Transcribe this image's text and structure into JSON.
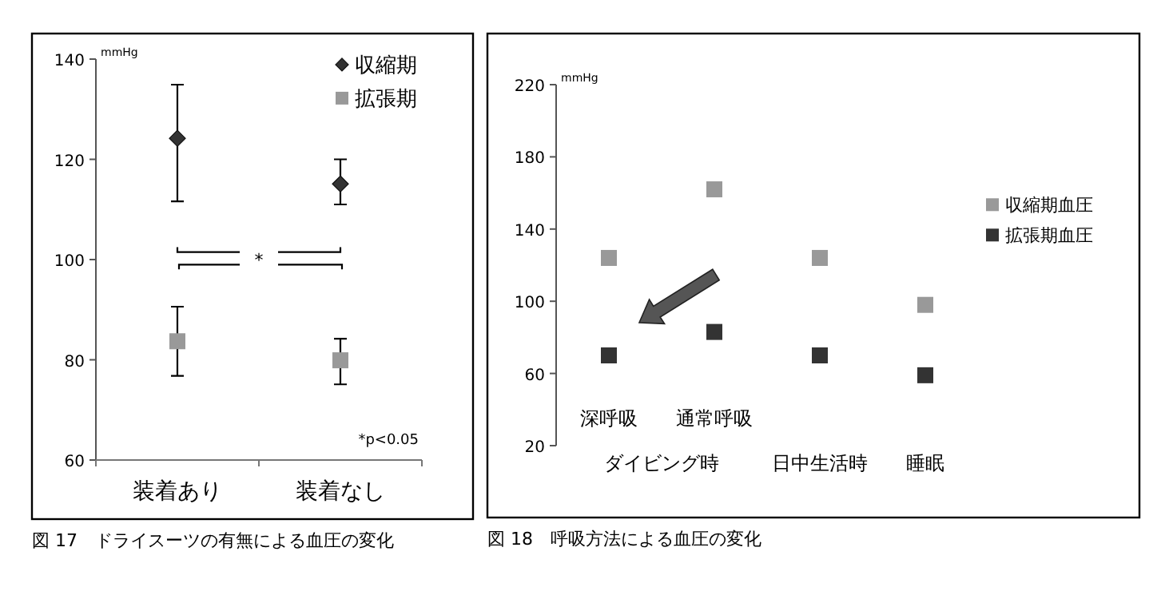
{
  "chart_data": [
    {
      "type": "scatter",
      "title": "図 17　ドライスーツの有無による血圧の変化",
      "ylabel": "mmHg",
      "categories": [
        "装着あり",
        "装着なし"
      ],
      "ylim": [
        60,
        140
      ],
      "yticks": [
        60,
        80,
        100,
        120,
        140
      ],
      "legend": "top right",
      "grid": false,
      "annotations": [
        "*",
        "*p<0.05"
      ],
      "series": [
        {
          "name": "収縮期",
          "color": "#333333",
          "marker": "diamond",
          "values": [
            124.2,
            115.1
          ],
          "errors": [
            [
              111.6,
              134.9
            ],
            [
              111,
              120
            ]
          ]
        },
        {
          "name": "拡張期",
          "color": "#999999",
          "marker": "square",
          "values": [
            83.7,
            79.9
          ],
          "errors": [
            [
              76.8,
              90.6
            ],
            [
              75.1,
              84.2
            ]
          ]
        }
      ]
    },
    {
      "type": "scatter",
      "title": "図 18　呼吸方法による血圧の変化",
      "ylabel": "mmHg",
      "categories": [
        "深呼吸",
        "通常呼吸",
        "日中生活時",
        "睡眠"
      ],
      "ylim": [
        20,
        220
      ],
      "yticks": [
        20,
        60,
        100,
        140,
        180,
        220
      ],
      "legend": "right",
      "grid": false,
      "marker": "square",
      "annotations": [
        "ダイビング時"
      ],
      "series": [
        {
          "name": "収縮期血圧",
          "color": "#999999",
          "values": [
            124,
            162,
            124,
            98
          ]
        },
        {
          "name": "拡張期血圧",
          "color": "#333333",
          "values": [
            70,
            83,
            70,
            59
          ]
        }
      ]
    }
  ]
}
